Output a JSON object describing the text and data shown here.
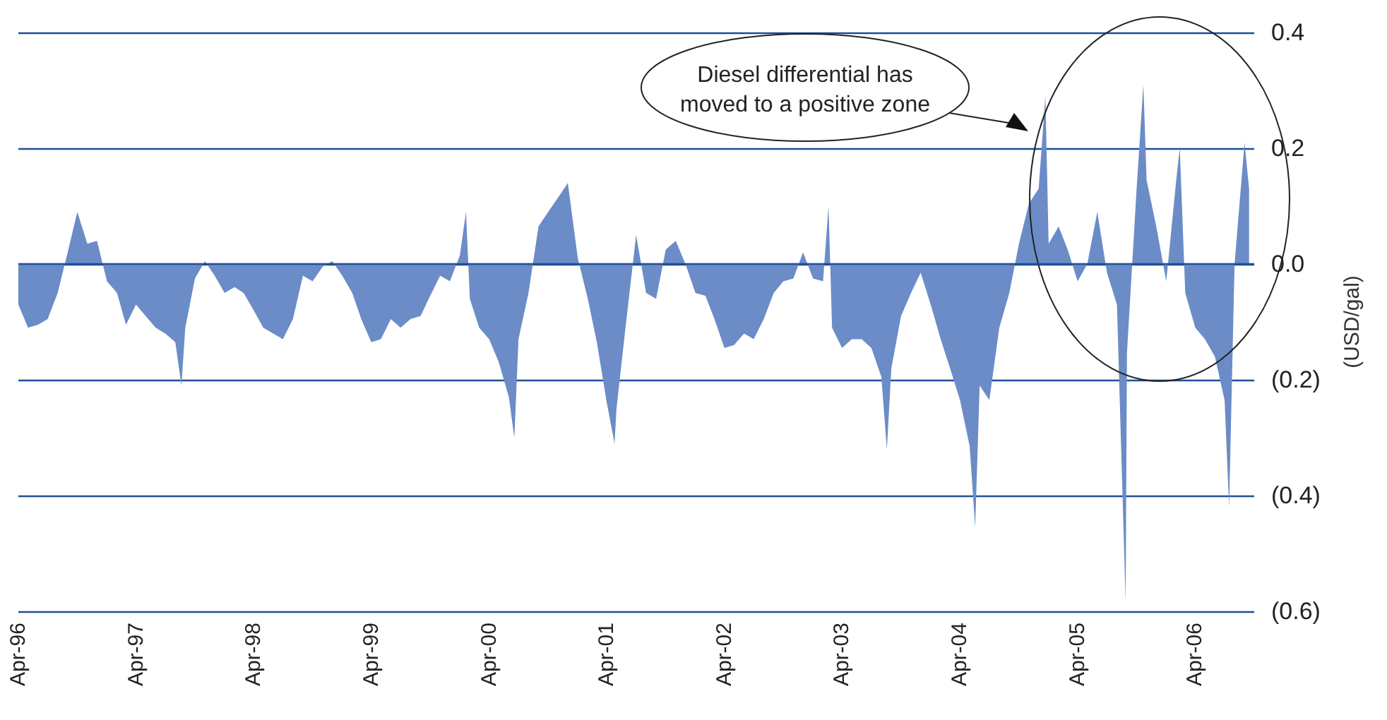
{
  "chart_data": {
    "type": "area",
    "ylabel": "(USD/gal)",
    "annotations": [
      "Diesel differential has moved to a positive zone"
    ],
    "x": [
      "1996-04-01",
      "1996-05-01",
      "1996-06-01",
      "1996-07-01",
      "1996-08-01",
      "1996-09-01",
      "1996-10-01",
      "1996-11-01",
      "1996-12-01",
      "1997-01-01",
      "1997-02-01",
      "1997-03-01",
      "1997-04-01",
      "1997-05-01",
      "1997-06-01",
      "1997-07-01",
      "1997-08-01",
      "1997-08-20",
      "1997-09-01",
      "1997-10-01",
      "1997-11-01",
      "1997-12-01",
      "1998-01-01",
      "1998-02-01",
      "1998-03-01",
      "1998-04-01",
      "1998-05-01",
      "1998-06-01",
      "1998-07-01",
      "1998-08-01",
      "1998-09-01",
      "1998-10-01",
      "1998-11-01",
      "1998-12-01",
      "1999-01-01",
      "1999-02-01",
      "1999-03-01",
      "1999-04-01",
      "1999-05-01",
      "1999-06-01",
      "1999-07-01",
      "1999-08-01",
      "1999-09-01",
      "1999-10-01",
      "1999-11-01",
      "1999-12-01",
      "2000-01-01",
      "2000-01-20",
      "2000-02-01",
      "2000-03-01",
      "2000-04-01",
      "2000-05-01",
      "2000-06-01",
      "2000-06-18",
      "2000-07-01",
      "2000-08-01",
      "2000-09-01",
      "2000-10-01",
      "2000-11-01",
      "2000-12-01",
      "2001-01-01",
      "2001-02-01",
      "2001-03-01",
      "2001-04-01",
      "2001-04-25",
      "2001-05-01",
      "2001-06-01",
      "2001-07-01",
      "2001-08-01",
      "2001-09-01",
      "2001-10-01",
      "2001-11-01",
      "2001-12-01",
      "2002-01-01",
      "2002-02-01",
      "2002-03-01",
      "2002-04-01",
      "2002-05-01",
      "2002-06-01",
      "2002-07-01",
      "2002-08-01",
      "2002-09-01",
      "2002-10-01",
      "2002-11-01",
      "2002-12-01",
      "2003-01-01",
      "2003-02-01",
      "2003-02-18",
      "2003-03-01",
      "2003-04-01",
      "2003-05-01",
      "2003-06-01",
      "2003-07-01",
      "2003-08-01",
      "2003-08-18",
      "2003-09-01",
      "2003-10-01",
      "2003-11-01",
      "2003-12-01",
      "2004-01-01",
      "2004-02-01",
      "2004-03-01",
      "2004-04-01",
      "2004-05-01",
      "2004-05-18",
      "2004-06-01",
      "2004-07-01",
      "2004-08-01",
      "2004-09-01",
      "2004-10-01",
      "2004-11-01",
      "2004-12-01",
      "2004-12-22",
      "2005-01-01",
      "2005-02-01",
      "2005-03-01",
      "2005-04-01",
      "2005-05-01",
      "2005-06-01",
      "2005-07-01",
      "2005-08-01",
      "2005-08-28",
      "2005-09-01",
      "2005-10-01",
      "2005-10-22",
      "2005-11-01",
      "2005-12-01",
      "2006-01-01",
      "2006-02-01",
      "2006-02-12",
      "2006-03-01",
      "2006-04-01",
      "2006-05-01",
      "2006-06-01",
      "2006-07-01",
      "2006-07-15",
      "2006-08-01",
      "2006-09-01",
      "2006-09-15"
    ],
    "series": [
      {
        "color": "#6b8cc7",
        "values": [
          -0.07,
          -0.11,
          -0.105,
          -0.095,
          -0.05,
          0.02,
          0.09,
          0.035,
          0.04,
          -0.03,
          -0.05,
          -0.105,
          -0.07,
          -0.09,
          -0.11,
          -0.12,
          -0.135,
          -0.21,
          -0.11,
          -0.025,
          0.005,
          -0.02,
          -0.05,
          -0.04,
          -0.05,
          -0.08,
          -0.11,
          -0.12,
          -0.13,
          -0.095,
          -0.02,
          -0.03,
          -0.005,
          0.005,
          -0.02,
          -0.05,
          -0.095,
          -0.135,
          -0.13,
          -0.095,
          -0.11,
          -0.095,
          -0.09,
          -0.055,
          -0.02,
          -0.03,
          0.015,
          0.09,
          -0.06,
          -0.11,
          -0.13,
          -0.17,
          -0.23,
          -0.3,
          -0.13,
          -0.05,
          0.065,
          0.09,
          0.115,
          0.14,
          0.01,
          -0.06,
          -0.135,
          -0.24,
          -0.31,
          -0.25,
          -0.095,
          0.05,
          -0.05,
          -0.06,
          0.025,
          0.04,
          0,
          -0.05,
          -0.055,
          -0.095,
          -0.145,
          -0.14,
          -0.12,
          -0.13,
          -0.095,
          -0.05,
          -0.03,
          -0.025,
          0.02,
          -0.025,
          -0.03,
          0.1,
          -0.11,
          -0.145,
          -0.13,
          -0.13,
          -0.145,
          -0.195,
          -0.32,
          -0.18,
          -0.09,
          -0.05,
          -0.015,
          -0.07,
          -0.13,
          -0.18,
          -0.235,
          -0.315,
          -0.455,
          -0.21,
          -0.235,
          -0.11,
          -0.05,
          0.035,
          0.105,
          0.13,
          0.29,
          0.035,
          0.065,
          0.025,
          -0.03,
          0,
          0.09,
          -0.015,
          -0.07,
          -0.585,
          -0.155,
          0.13,
          0.31,
          0.145,
          0.065,
          -0.03,
          0.145,
          0.2,
          -0.05,
          -0.11,
          -0.13,
          -0.16,
          -0.235,
          -0.42,
          0,
          0.21,
          0.13
        ]
      }
    ],
    "xlim": [
      "1996-04-01",
      "2006-10-01"
    ],
    "xticks": [
      {
        "value": "1996-04-01",
        "label": "Apr-96"
      },
      {
        "value": "1997-04-01",
        "label": "Apr-97"
      },
      {
        "value": "1998-04-01",
        "label": "Apr-98"
      },
      {
        "value": "1999-04-01",
        "label": "Apr-99"
      },
      {
        "value": "2000-04-01",
        "label": "Apr-00"
      },
      {
        "value": "2001-04-01",
        "label": "Apr-01"
      },
      {
        "value": "2002-04-01",
        "label": "Apr-02"
      },
      {
        "value": "2003-04-01",
        "label": "Apr-03"
      },
      {
        "value": "2004-04-01",
        "label": "Apr-04"
      },
      {
        "value": "2005-04-01",
        "label": "Apr-05"
      },
      {
        "value": "2006-04-01",
        "label": "Apr-06"
      }
    ],
    "ylim": [
      -0.6,
      0.4
    ],
    "yticks": [
      0.4,
      0.2,
      {
        "value": 0,
        "label": "0.0"
      },
      {
        "value": -0.2,
        "label": "(0.2)"
      },
      {
        "value": -0.4,
        "label": "(0.4)"
      },
      {
        "value": -0.6,
        "label": "(0.6)"
      }
    ],
    "grid": "y"
  }
}
